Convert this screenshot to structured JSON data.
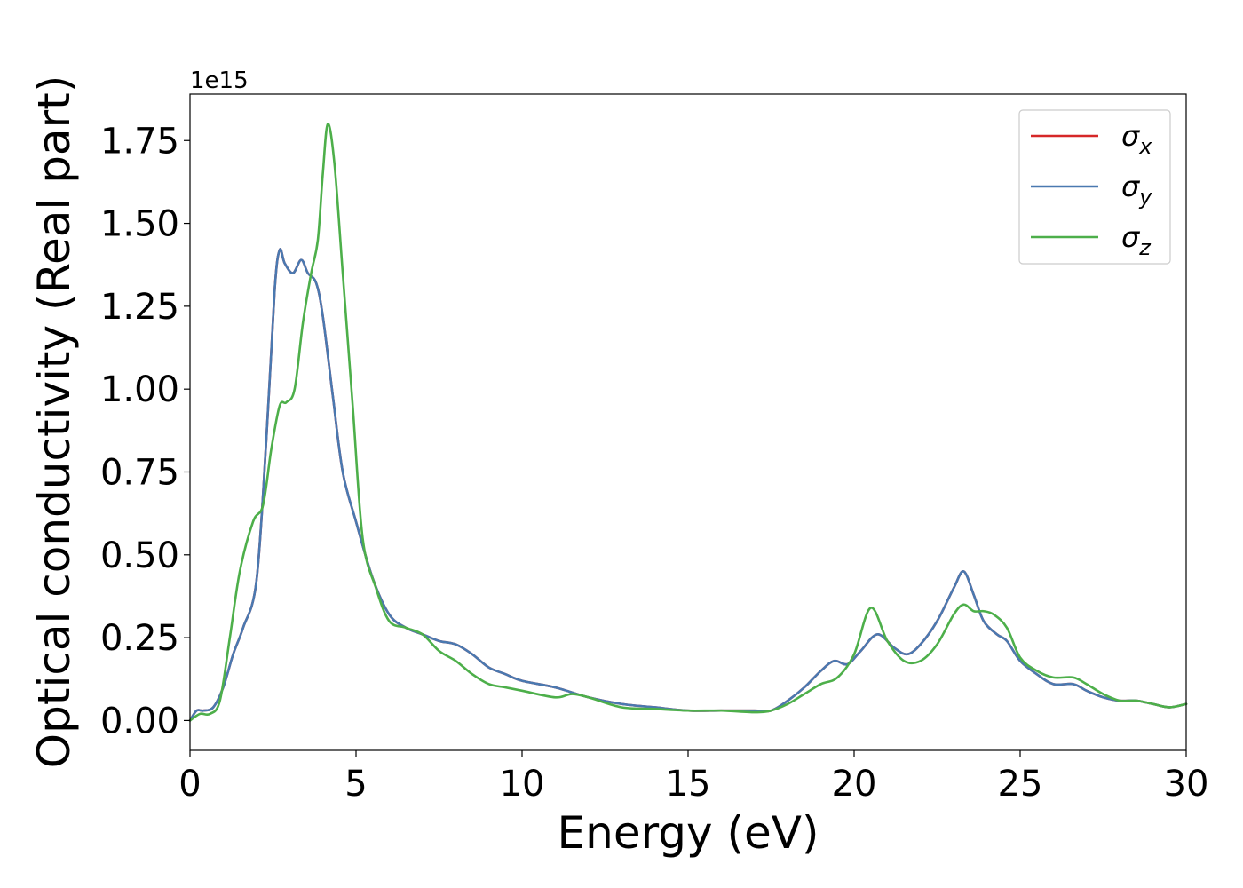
{
  "chart_data": {
    "type": "line",
    "xlabel": "Energy (eV)",
    "ylabel": "Optical conductivity (Real part)",
    "y_offset_label": "1e15",
    "y_scale": 1000000000000000.0,
    "xlim": [
      0,
      30
    ],
    "ylim": [
      -0.09,
      1.89
    ],
    "x_ticks": [
      0,
      5,
      10,
      15,
      20,
      25,
      30
    ],
    "x_tick_labels": [
      "0",
      "5",
      "10",
      "15",
      "20",
      "25",
      "30"
    ],
    "y_ticks": [
      0.0,
      0.25,
      0.5,
      0.75,
      1.0,
      1.25,
      1.5,
      1.75
    ],
    "y_tick_labels": [
      "0.00",
      "0.25",
      "0.50",
      "0.75",
      "1.00",
      "1.25",
      "1.50",
      "1.75"
    ],
    "grid": false,
    "legend_position": "top-right",
    "series": [
      {
        "name": "σx",
        "legend_base": "σ",
        "legend_sub": "x",
        "color": "#d62728",
        "x": [
          0,
          0.2,
          0.4,
          0.7,
          1.0,
          1.3,
          1.6,
          2.0,
          2.3,
          2.55,
          2.7,
          2.85,
          3.1,
          3.35,
          3.55,
          3.8,
          4.0,
          4.3,
          4.6,
          5.0,
          5.5,
          6.0,
          6.5,
          7.0,
          7.5,
          8.0,
          8.5,
          9.0,
          9.5,
          10.0,
          11.0,
          12.0,
          13.0,
          14.0,
          15.0,
          16.0,
          17.0,
          17.5,
          18.0,
          18.5,
          19.0,
          19.4,
          19.8,
          20.2,
          20.7,
          21.2,
          21.6,
          22.0,
          22.5,
          23.0,
          23.3,
          23.6,
          23.9,
          24.3,
          24.6,
          25.0,
          25.5,
          26.0,
          26.6,
          27.0,
          27.5,
          28.0,
          28.5,
          29.0,
          29.5,
          30.0
        ],
        "y": [
          0.0,
          0.03,
          0.03,
          0.04,
          0.1,
          0.2,
          0.28,
          0.42,
          0.85,
          1.3,
          1.42,
          1.38,
          1.35,
          1.39,
          1.35,
          1.32,
          1.22,
          0.98,
          0.75,
          0.6,
          0.43,
          0.32,
          0.28,
          0.26,
          0.24,
          0.23,
          0.2,
          0.16,
          0.14,
          0.12,
          0.1,
          0.07,
          0.05,
          0.04,
          0.03,
          0.03,
          0.03,
          0.03,
          0.06,
          0.1,
          0.15,
          0.18,
          0.17,
          0.21,
          0.26,
          0.22,
          0.2,
          0.23,
          0.3,
          0.4,
          0.45,
          0.38,
          0.3,
          0.26,
          0.24,
          0.18,
          0.14,
          0.11,
          0.11,
          0.09,
          0.07,
          0.06,
          0.06,
          0.05,
          0.04,
          0.05
        ]
      },
      {
        "name": "σy",
        "legend_base": "σ",
        "legend_sub": "y",
        "color": "#4a79b0",
        "x": [
          0,
          0.2,
          0.4,
          0.7,
          1.0,
          1.3,
          1.6,
          2.0,
          2.3,
          2.55,
          2.7,
          2.85,
          3.1,
          3.35,
          3.55,
          3.8,
          4.0,
          4.3,
          4.6,
          5.0,
          5.5,
          6.0,
          6.5,
          7.0,
          7.5,
          8.0,
          8.5,
          9.0,
          9.5,
          10.0,
          11.0,
          12.0,
          13.0,
          14.0,
          15.0,
          16.0,
          17.0,
          17.5,
          18.0,
          18.5,
          19.0,
          19.4,
          19.8,
          20.2,
          20.7,
          21.2,
          21.6,
          22.0,
          22.5,
          23.0,
          23.3,
          23.6,
          23.9,
          24.3,
          24.6,
          25.0,
          25.5,
          26.0,
          26.6,
          27.0,
          27.5,
          28.0,
          28.5,
          29.0,
          29.5,
          30.0
        ],
        "y": [
          0.0,
          0.03,
          0.03,
          0.04,
          0.1,
          0.2,
          0.28,
          0.42,
          0.85,
          1.3,
          1.42,
          1.38,
          1.35,
          1.39,
          1.35,
          1.32,
          1.22,
          0.98,
          0.75,
          0.6,
          0.43,
          0.32,
          0.28,
          0.26,
          0.24,
          0.23,
          0.2,
          0.16,
          0.14,
          0.12,
          0.1,
          0.07,
          0.05,
          0.04,
          0.03,
          0.03,
          0.03,
          0.03,
          0.06,
          0.1,
          0.15,
          0.18,
          0.17,
          0.21,
          0.26,
          0.22,
          0.2,
          0.23,
          0.3,
          0.4,
          0.45,
          0.38,
          0.3,
          0.26,
          0.24,
          0.18,
          0.14,
          0.11,
          0.11,
          0.09,
          0.07,
          0.06,
          0.06,
          0.05,
          0.04,
          0.05
        ]
      },
      {
        "name": "σz",
        "legend_base": "σ",
        "legend_sub": "z",
        "color": "#4daf4a",
        "x": [
          0,
          0.3,
          0.6,
          0.9,
          1.2,
          1.5,
          1.9,
          2.2,
          2.45,
          2.7,
          2.9,
          3.15,
          3.4,
          3.65,
          3.85,
          4.0,
          4.15,
          4.35,
          4.6,
          4.9,
          5.2,
          5.6,
          6.0,
          6.5,
          7.0,
          7.5,
          8.0,
          8.5,
          9.0,
          9.5,
          10.0,
          11.0,
          11.5,
          12.0,
          13.0,
          14.0,
          15.0,
          16.0,
          17.0,
          17.5,
          18.0,
          18.5,
          19.0,
          19.5,
          20.0,
          20.5,
          21.0,
          21.5,
          22.0,
          22.5,
          23.0,
          23.3,
          23.6,
          23.9,
          24.2,
          24.6,
          25.0,
          25.5,
          26.0,
          26.6,
          27.0,
          27.5,
          28.0,
          28.5,
          29.0,
          29.5,
          30.0
        ],
        "y": [
          0.0,
          0.02,
          0.02,
          0.06,
          0.25,
          0.45,
          0.6,
          0.65,
          0.82,
          0.95,
          0.96,
          1.0,
          1.2,
          1.35,
          1.45,
          1.65,
          1.8,
          1.68,
          1.35,
          0.95,
          0.55,
          0.4,
          0.3,
          0.28,
          0.26,
          0.21,
          0.18,
          0.14,
          0.11,
          0.1,
          0.09,
          0.07,
          0.08,
          0.07,
          0.04,
          0.035,
          0.03,
          0.03,
          0.025,
          0.03,
          0.05,
          0.08,
          0.11,
          0.13,
          0.2,
          0.34,
          0.24,
          0.18,
          0.18,
          0.23,
          0.32,
          0.35,
          0.33,
          0.33,
          0.32,
          0.28,
          0.19,
          0.15,
          0.13,
          0.13,
          0.11,
          0.08,
          0.06,
          0.06,
          0.05,
          0.04,
          0.05
        ]
      }
    ]
  }
}
